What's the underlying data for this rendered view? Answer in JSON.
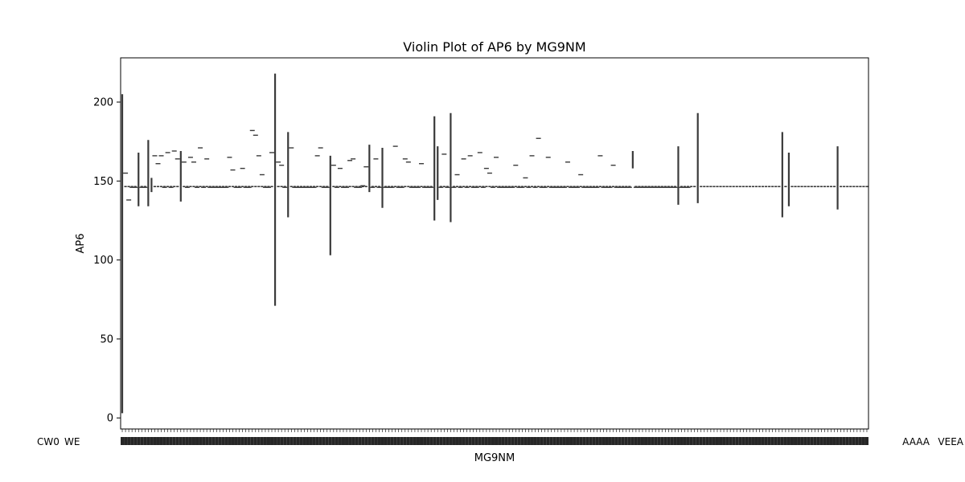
{
  "chart_data": {
    "type": "violin",
    "title": "Violin Plot of AP6 by MG9NM",
    "xlabel": "MG9NM",
    "ylabel": "AP6",
    "ylim": [
      -7,
      228
    ],
    "yticks": [
      0,
      50,
      100,
      150,
      200
    ],
    "grid": false,
    "legend": "none",
    "baseline": 146.5,
    "mark_color": "#3a3a3a",
    "category_count": 230,
    "categories_legible": false,
    "category_label_samples": [
      "CW0",
      "WE",
      "AAAA",
      "VEEA"
    ],
    "values_long_violins": [
      {
        "index": 0,
        "min": 3,
        "max": 205
      },
      {
        "index": 5,
        "min": 134,
        "max": 168
      },
      {
        "index": 8,
        "min": 134,
        "max": 176
      },
      {
        "index": 9,
        "min": 143,
        "max": 152
      },
      {
        "index": 18,
        "min": 137,
        "max": 169
      },
      {
        "index": 47,
        "min": 71,
        "max": 218
      },
      {
        "index": 51,
        "min": 127,
        "max": 181
      },
      {
        "index": 64,
        "min": 103,
        "max": 166
      },
      {
        "index": 76,
        "min": 143,
        "max": 173
      },
      {
        "index": 80,
        "min": 133,
        "max": 171
      },
      {
        "index": 96,
        "min": 125,
        "max": 191
      },
      {
        "index": 97,
        "min": 138,
        "max": 172
      },
      {
        "index": 101,
        "min": 124,
        "max": 193
      },
      {
        "index": 157,
        "min": 158,
        "max": 169
      },
      {
        "index": 171,
        "min": 135,
        "max": 172
      },
      {
        "index": 177,
        "min": 136,
        "max": 193
      },
      {
        "index": 203,
        "min": 127,
        "max": 181
      },
      {
        "index": 205,
        "min": 134,
        "max": 168
      },
      {
        "index": 220,
        "min": 132,
        "max": 172
      }
    ],
    "values_short_marks": [
      155,
      138,
      146,
      146,
      146,
      146,
      166,
      161,
      166,
      146,
      168,
      146,
      169,
      164,
      162,
      146,
      165,
      162,
      146,
      171,
      146,
      164,
      146,
      146,
      146,
      146,
      146,
      146,
      165,
      157,
      146,
      146,
      158,
      146,
      146,
      182,
      179,
      166,
      154,
      146,
      146,
      168,
      162,
      160,
      146,
      171,
      146,
      146,
      146,
      146,
      146,
      146,
      146,
      166,
      171,
      146,
      146,
      160,
      146,
      158,
      146,
      146,
      163,
      164,
      146,
      146,
      147,
      159,
      146,
      164,
      146,
      146,
      146,
      146,
      172,
      146,
      146,
      164,
      162,
      146,
      146,
      146,
      161,
      146,
      146,
      146,
      146,
      167,
      146,
      146,
      154,
      146,
      164,
      146,
      166,
      146,
      146,
      168,
      146,
      158,
      155,
      146,
      165,
      146,
      146,
      146,
      146,
      146,
      160,
      146,
      146,
      152,
      146,
      166,
      146,
      177,
      146,
      146,
      165,
      146,
      146,
      146,
      146,
      146,
      162,
      146,
      146,
      146,
      154,
      146,
      146,
      146,
      146,
      146,
      166,
      146,
      146,
      146,
      160,
      146,
      146,
      146,
      146,
      146,
      146,
      146,
      146,
      146,
      146,
      146,
      146,
      146,
      146,
      146,
      146,
      146,
      146,
      146,
      146,
      146
    ]
  }
}
